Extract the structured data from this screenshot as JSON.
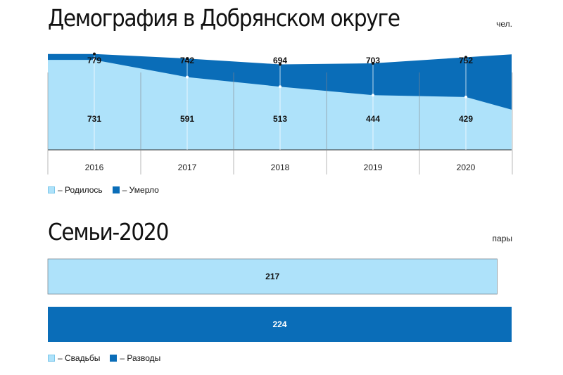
{
  "charts": {
    "demography": {
      "title": "Демография в Добрянском округе",
      "unit": "чел.",
      "legend": [
        {
          "label": "– Родилось",
          "color": "#aee2fa"
        },
        {
          "label": "– Умерло",
          "color": "#0a6db8"
        }
      ]
    },
    "families": {
      "title": "Семьи-2020",
      "unit": "пары",
      "legend": [
        {
          "label": "– Свадьбы",
          "color": "#aee2fa"
        },
        {
          "label": "– Разводы",
          "color": "#0a6db8"
        }
      ]
    }
  },
  "chart_data": [
    {
      "type": "area",
      "title": "Демография в Добрянском округе",
      "ylabel": "чел.",
      "categories": [
        "2016",
        "2017",
        "2018",
        "2019",
        "2020"
      ],
      "series": [
        {
          "name": "Родилось",
          "values": [
            731,
            591,
            513,
            444,
            429
          ],
          "color": "#aee2fa"
        },
        {
          "name": "Умерло",
          "values": [
            779,
            742,
            694,
            703,
            752
          ],
          "color": "#0a6db8"
        }
      ],
      "ylim": [
        0,
        800
      ],
      "grid": false,
      "legend_position": "bottom-left"
    },
    {
      "type": "bar",
      "orientation": "horizontal",
      "title": "Семьи-2020",
      "xlabel": "пары",
      "categories": [
        "Свадьбы",
        "Разводы"
      ],
      "values": [
        217,
        224
      ],
      "colors": [
        "#aee2fa",
        "#0a6db8"
      ],
      "xlim": [
        0,
        224
      ],
      "legend_position": "bottom-left"
    }
  ]
}
